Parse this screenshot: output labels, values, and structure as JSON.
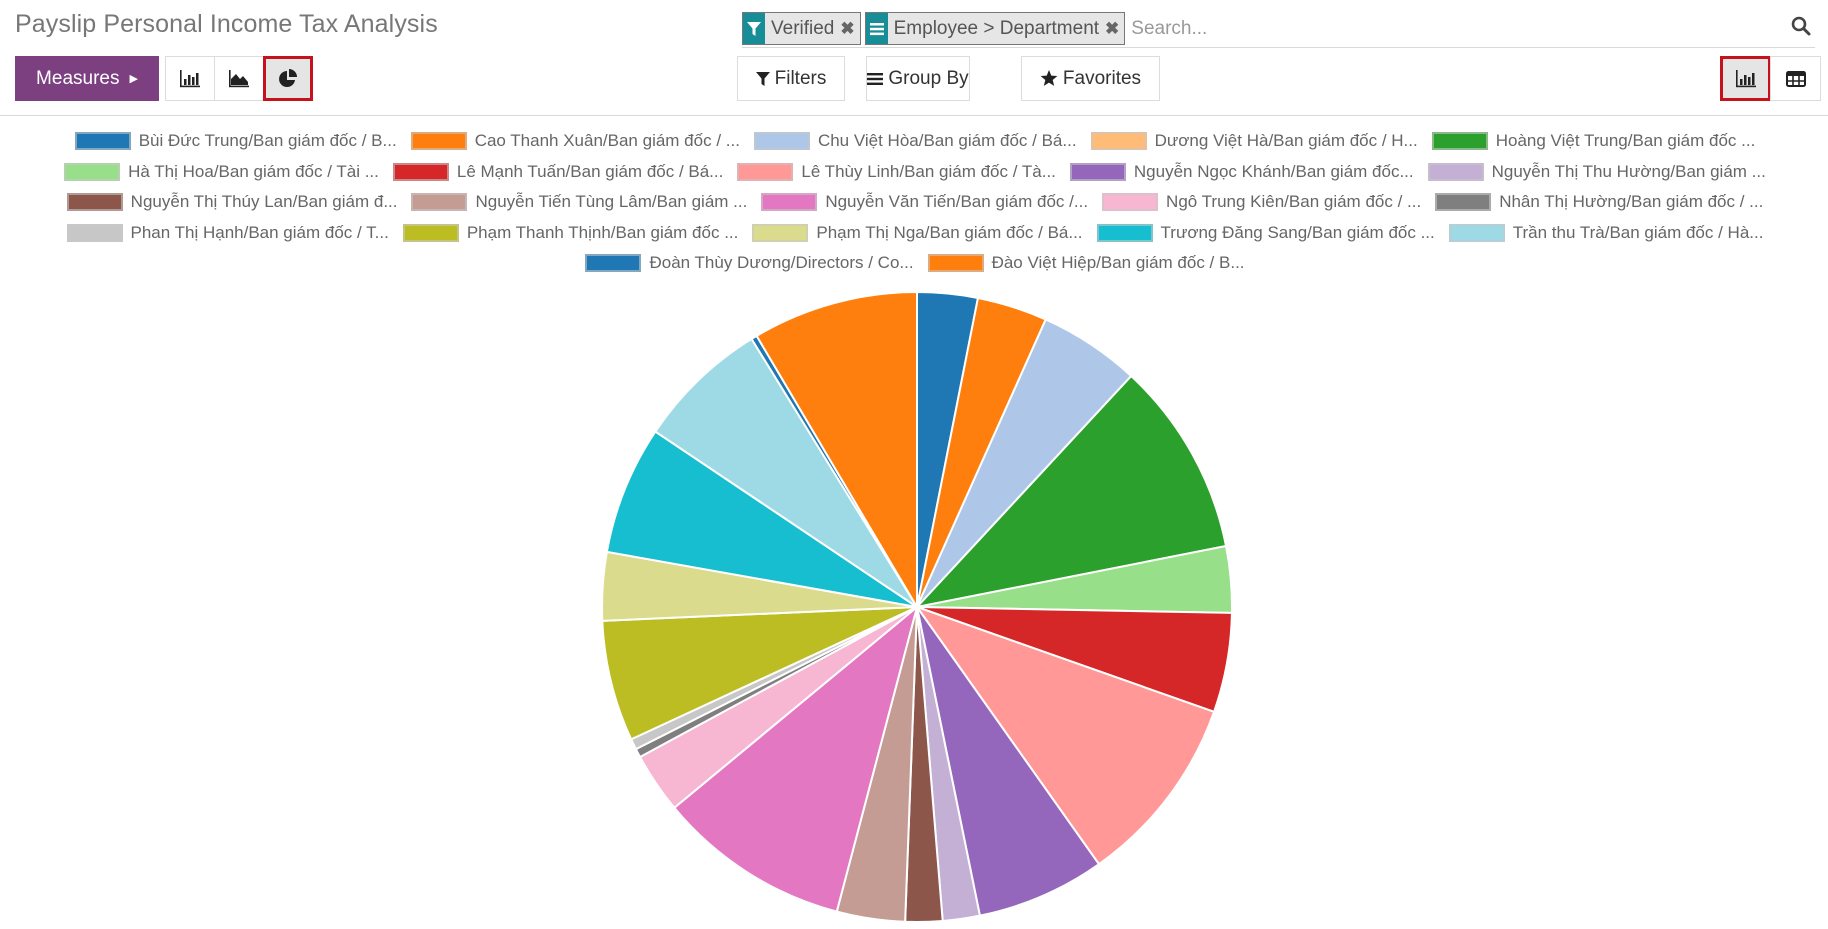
{
  "header": {
    "title": "Payslip Personal Income Tax Analysis"
  },
  "search": {
    "facets": [
      {
        "icon": "filter-icon",
        "label": "Verified"
      },
      {
        "icon": "group-by-icon",
        "label": "Employee > Department"
      }
    ],
    "placeholder": "Search..."
  },
  "toolbar": {
    "measures_label": "Measures",
    "chart_types": [
      "bar-chart",
      "line-chart",
      "pie-chart"
    ],
    "active_chart_type": "pie-chart",
    "filters_label": "Filters",
    "group_by_label": "Group By",
    "favorites_label": "Favorites",
    "views": [
      "graph",
      "pivot"
    ],
    "active_view": "graph"
  },
  "colors": {
    "brand": "#7c3f80",
    "facet_accent": "#178d98",
    "active_outline": "#c5121b"
  },
  "chart_data": {
    "type": "pie",
    "title": "",
    "legend_position": "top",
    "categories": [
      "Bùi Đức Trung/Ban giám đốc / B...",
      "Cao Thanh Xuân/Ban giám đốc / ...",
      "Chu Việt Hòa/Ban giám đốc / Bá...",
      "Dương Việt Hà/Ban giám đốc / H...",
      "Hoàng Việt Trung/Ban giám đốc ...",
      "Hà Thị Hoa/Ban giám đốc / Tài ...",
      "Lê Mạnh Tuấn/Ban giám đốc / Bá...",
      "Lê Thùy Linh/Ban giám đốc / Tà...",
      "Nguyễn Ngọc Khánh/Ban giám đốc...",
      "Nguyễn Thị Thu Hường/Ban giám ...",
      "Nguyễn Thị Thúy Lan/Ban giám đ...",
      "Nguyễn Tiến Tùng Lâm/Ban giám ...",
      "Nguyễn Văn Tiến/Ban giám đốc /...",
      "Ngô Trung Kiên/Ban giám đốc / ...",
      "Nhân Thị Hường/Ban giám đốc / ...",
      "Phan Thị Hạnh/Ban giám đốc / T...",
      "Phạm Thanh Thịnh/Ban giám đốc ...",
      "Phạm Thị Nga/Ban giám đốc / Bá...",
      "Trương Đăng Sang/Ban giám đốc ...",
      "Trần thu Trà/Ban giám đốc / Hà...",
      "Đoàn Thùy Dương/Directors / Co...",
      "Đào Việt Hiệp/Ban giám đốc / B..."
    ],
    "colors": [
      "#1f77b4",
      "#ff7f0e",
      "#aec7e8",
      "#ffbb78",
      "#2ca02c",
      "#98df8a",
      "#d62728",
      "#ff9896",
      "#9467bd",
      "#c5b0d5",
      "#8c564b",
      "#c49c94",
      "#e377c2",
      "#f7b6d2",
      "#7f7f7f",
      "#c7c7c7",
      "#bcbd22",
      "#dbdb8d",
      "#17becf",
      "#9edae5",
      "#1f77b4",
      "#ff7f0e"
    ],
    "values_percent": [
      3.1,
      3.6,
      5.2,
      0.0,
      10.0,
      3.4,
      5.1,
      9.8,
      6.6,
      1.9,
      1.9,
      3.5,
      9.9,
      3.1,
      0.45,
      0.55,
      6.2,
      3.5,
      6.6,
      6.8,
      0.3,
      8.5
    ]
  }
}
